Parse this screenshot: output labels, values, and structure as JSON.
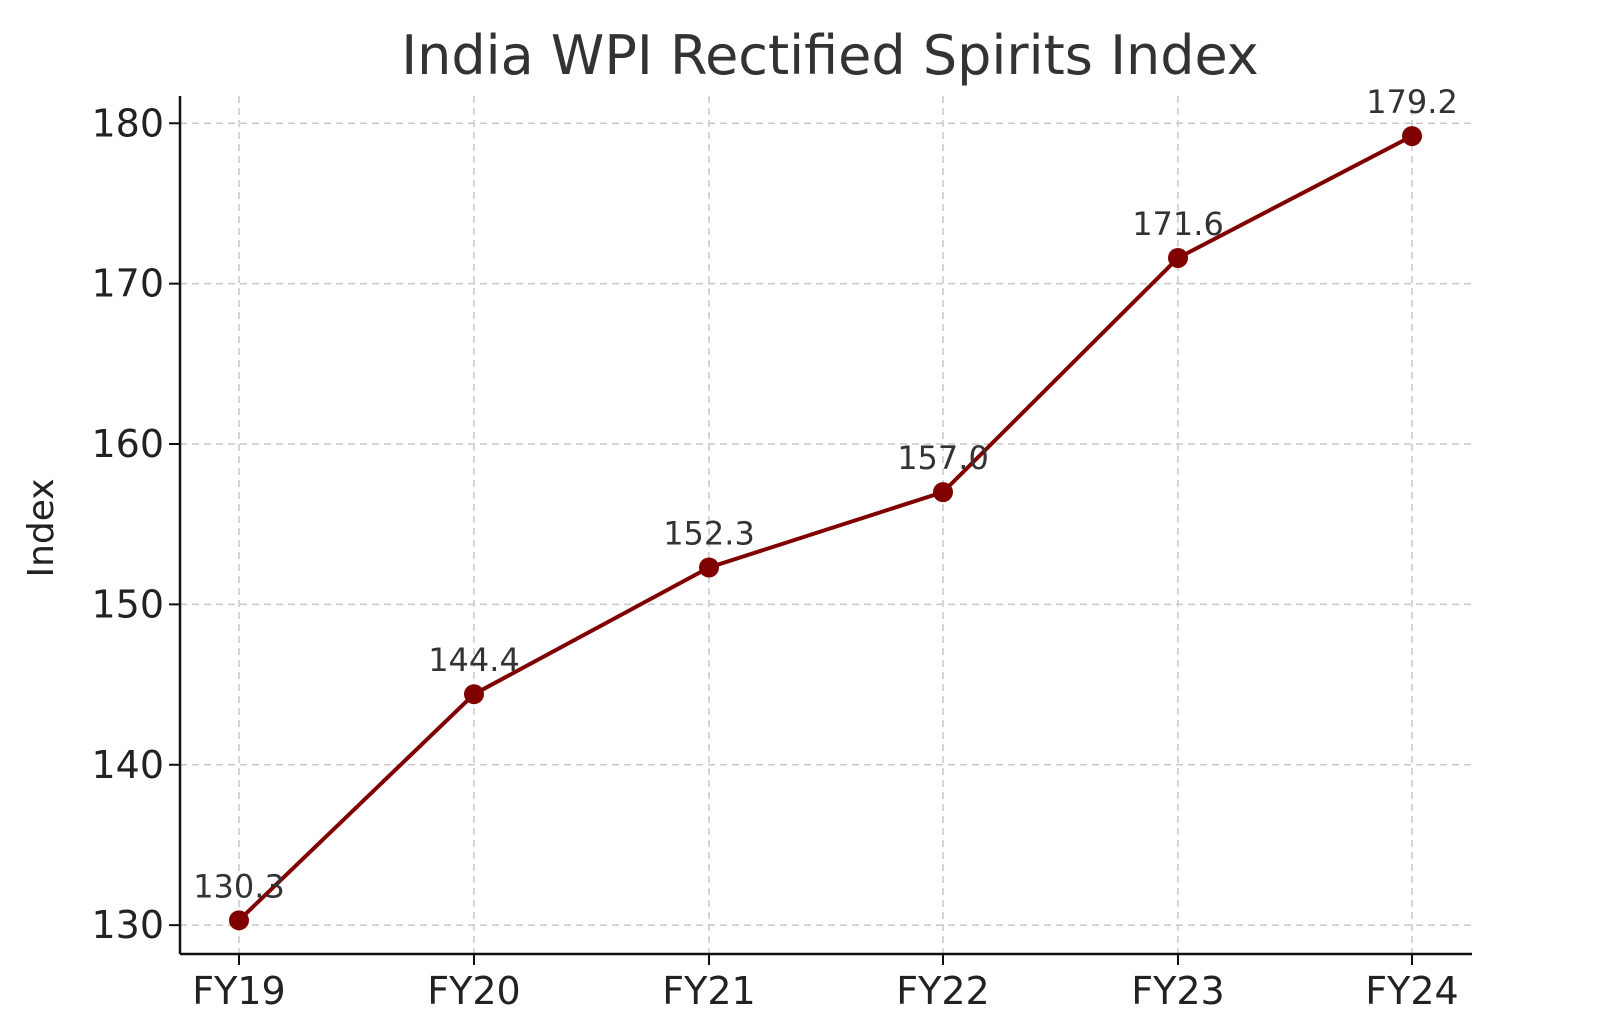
{
  "chart_data": {
    "type": "line",
    "title": "India WPI Rectified Spirits Index",
    "xlabel": "",
    "ylabel": "Index",
    "categories": [
      "FY19",
      "FY20",
      "FY21",
      "FY22",
      "FY23",
      "FY24"
    ],
    "series": [
      {
        "values": [
          130.3,
          144.4,
          152.3,
          157.0,
          171.6,
          179.2
        ],
        "color": "#800000"
      }
    ],
    "data_labels": [
      "130.3",
      "144.4",
      "152.3",
      "157.0",
      "171.6",
      "179.2"
    ],
    "y_ticks": [
      130,
      140,
      150,
      160,
      170,
      180
    ],
    "ylim": [
      128.2,
      181.7
    ],
    "grid": true,
    "legend": "none"
  }
}
